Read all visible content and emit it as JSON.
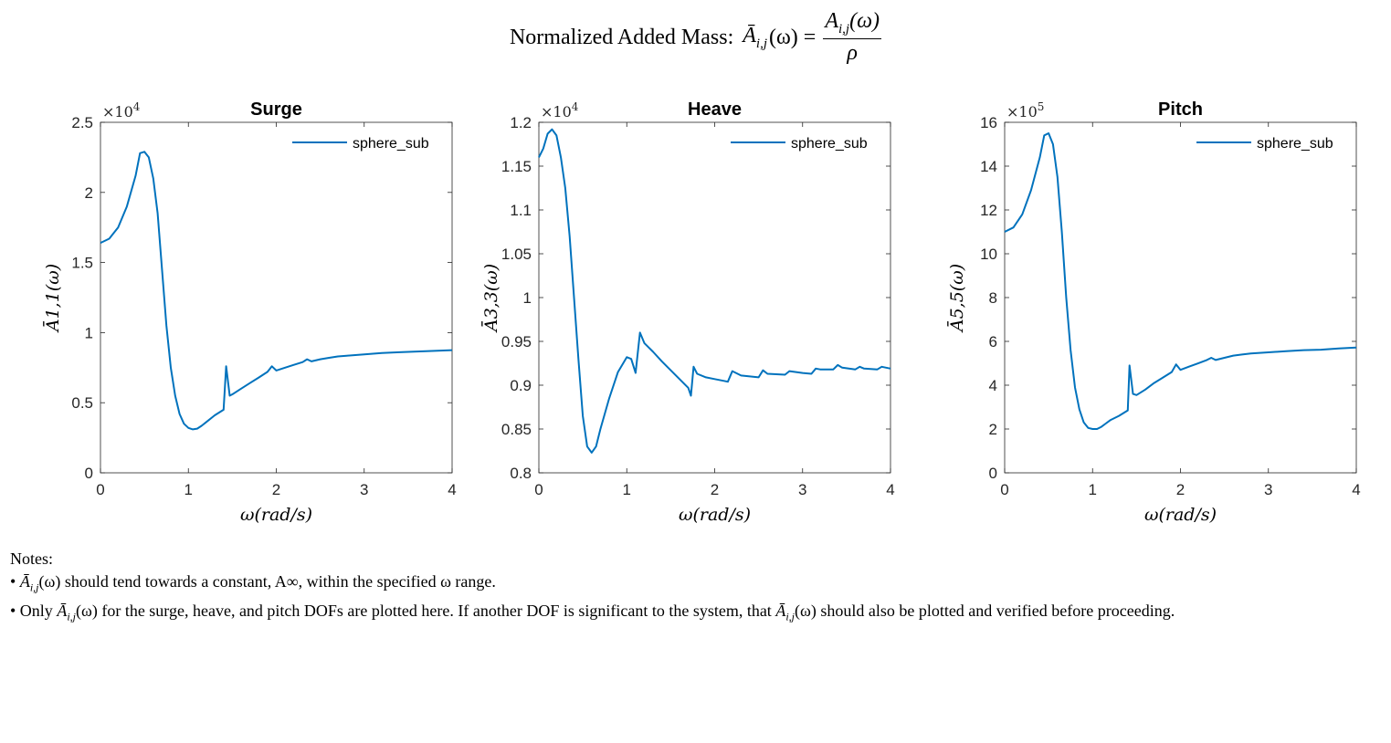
{
  "title": {
    "prefix": "Normalized Added Mass:",
    "lhs": "Ā",
    "lhs_sub": "i,j",
    "lhs_arg": "(ω) =",
    "numerator": "A",
    "numerator_sub": "i,j",
    "numerator_arg": "(ω)",
    "denominator": "ρ"
  },
  "colors": {
    "line": "#0072BD",
    "axis": "#262626",
    "text": "#000000"
  },
  "notes": {
    "header": "Notes:",
    "bullet1_prefix": "• ",
    "bullet1_sym": "Ā",
    "bullet1_sub": "i,j",
    "bullet1_arg": "(ω)",
    "bullet1_text": " should tend towards a constant, A∞, within the specified ω range.",
    "bullet2_prefix": "• Only ",
    "bullet2_sym": "Ā",
    "bullet2_sub": "i,j",
    "bullet2_arg": "(ω)",
    "bullet2_text_a": " for the surge, heave, and pitch DOFs are plotted here. If another DOF is significant to the system, that ",
    "bullet2_sym2": "Ā",
    "bullet2_sub2": "i,j",
    "bullet2_arg2": "(ω)",
    "bullet2_text_b": " should also be plotted and verified before proceeding."
  },
  "chart_data": [
    {
      "type": "line",
      "title": "Surge",
      "xlabel": "ω(rad/s)",
      "ylabel": "Ā1,1(ω)",
      "exponent": "×10",
      "exponent_power": "4",
      "scale": 10000,
      "xlim": [
        0,
        4
      ],
      "ylim": [
        0,
        2.5
      ],
      "xticks": [
        "0",
        "1",
        "2",
        "3",
        "4"
      ],
      "yticks": [
        "0",
        "0.5",
        "1",
        "1.5",
        "2",
        "2.5"
      ],
      "grid": false,
      "legend_position": "top-right",
      "series": [
        {
          "name": "sphere_sub",
          "x": [
            0,
            0.1,
            0.2,
            0.3,
            0.4,
            0.45,
            0.5,
            0.55,
            0.6,
            0.65,
            0.7,
            0.75,
            0.8,
            0.85,
            0.9,
            0.95,
            1.0,
            1.05,
            1.1,
            1.15,
            1.2,
            1.3,
            1.4,
            1.43,
            1.47,
            1.5,
            1.6,
            1.7,
            1.8,
            1.9,
            1.95,
            2.0,
            2.1,
            2.2,
            2.3,
            2.35,
            2.4,
            2.5,
            2.6,
            2.7,
            2.8,
            3.0,
            3.2,
            3.4,
            3.6,
            3.8,
            4.0
          ],
          "y": [
            1.64,
            1.67,
            1.75,
            1.9,
            2.12,
            2.28,
            2.29,
            2.25,
            2.1,
            1.85,
            1.45,
            1.05,
            0.75,
            0.55,
            0.42,
            0.35,
            0.32,
            0.31,
            0.315,
            0.335,
            0.36,
            0.41,
            0.45,
            0.76,
            0.55,
            0.56,
            0.6,
            0.64,
            0.68,
            0.72,
            0.76,
            0.73,
            0.75,
            0.77,
            0.79,
            0.81,
            0.795,
            0.81,
            0.82,
            0.83,
            0.835,
            0.845,
            0.855,
            0.86,
            0.865,
            0.87,
            0.875
          ]
        }
      ]
    },
    {
      "type": "line",
      "title": "Heave",
      "xlabel": "ω(rad/s)",
      "ylabel": "Ā3,3(ω)",
      "exponent": "×10",
      "exponent_power": "4",
      "scale": 10000,
      "xlim": [
        0,
        4
      ],
      "ylim": [
        0.8,
        1.2
      ],
      "xticks": [
        "0",
        "1",
        "2",
        "3",
        "4"
      ],
      "yticks": [
        "0.8",
        "0.85",
        "0.9",
        "0.95",
        "1",
        "1.05",
        "1.1",
        "1.15",
        "1.2"
      ],
      "grid": false,
      "legend_position": "top-right",
      "series": [
        {
          "name": "sphere_sub",
          "x": [
            0,
            0.05,
            0.1,
            0.15,
            0.2,
            0.25,
            0.3,
            0.35,
            0.4,
            0.45,
            0.5,
            0.55,
            0.6,
            0.65,
            0.7,
            0.8,
            0.9,
            1.0,
            1.05,
            1.1,
            1.15,
            1.2,
            1.3,
            1.4,
            1.5,
            1.6,
            1.7,
            1.73,
            1.76,
            1.8,
            1.9,
            2.0,
            2.1,
            2.15,
            2.2,
            2.3,
            2.4,
            2.5,
            2.55,
            2.6,
            2.8,
            2.85,
            3.0,
            3.1,
            3.15,
            3.2,
            3.35,
            3.4,
            3.45,
            3.6,
            3.65,
            3.7,
            3.85,
            3.9,
            4.0
          ],
          "y": [
            1.16,
            1.17,
            1.187,
            1.192,
            1.185,
            1.16,
            1.125,
            1.07,
            1.0,
            0.93,
            0.865,
            0.83,
            0.823,
            0.83,
            0.85,
            0.885,
            0.915,
            0.932,
            0.93,
            0.914,
            0.96,
            0.948,
            0.938,
            0.927,
            0.917,
            0.907,
            0.897,
            0.888,
            0.921,
            0.913,
            0.909,
            0.907,
            0.905,
            0.904,
            0.916,
            0.911,
            0.91,
            0.909,
            0.917,
            0.913,
            0.912,
            0.916,
            0.914,
            0.913,
            0.919,
            0.918,
            0.918,
            0.923,
            0.92,
            0.918,
            0.921,
            0.919,
            0.918,
            0.921,
            0.919
          ]
        }
      ]
    },
    {
      "type": "line",
      "title": "Pitch",
      "xlabel": "ω(rad/s)",
      "ylabel": "Ā5,5(ω)",
      "exponent": "×10",
      "exponent_power": "5",
      "scale": 100000,
      "xlim": [
        0,
        4
      ],
      "ylim": [
        0,
        16
      ],
      "xticks": [
        "0",
        "1",
        "2",
        "3",
        "4"
      ],
      "yticks": [
        "0",
        "2",
        "4",
        "6",
        "8",
        "10",
        "12",
        "14",
        "16"
      ],
      "grid": false,
      "legend_position": "top-right",
      "series": [
        {
          "name": "sphere_sub",
          "x": [
            0,
            0.1,
            0.2,
            0.3,
            0.4,
            0.45,
            0.5,
            0.55,
            0.6,
            0.65,
            0.7,
            0.75,
            0.8,
            0.85,
            0.9,
            0.95,
            1.0,
            1.05,
            1.1,
            1.15,
            1.2,
            1.3,
            1.4,
            1.42,
            1.46,
            1.5,
            1.6,
            1.7,
            1.8,
            1.9,
            1.95,
            2.0,
            2.1,
            2.2,
            2.3,
            2.35,
            2.4,
            2.5,
            2.6,
            2.7,
            2.8,
            3.0,
            3.2,
            3.4,
            3.6,
            3.8,
            4.0
          ],
          "y": [
            11.0,
            11.2,
            11.8,
            12.9,
            14.4,
            15.4,
            15.5,
            15.0,
            13.5,
            11.0,
            8.0,
            5.6,
            3.9,
            2.9,
            2.3,
            2.05,
            2.0,
            2.0,
            2.1,
            2.25,
            2.4,
            2.6,
            2.85,
            4.9,
            3.6,
            3.55,
            3.8,
            4.1,
            4.35,
            4.6,
            4.95,
            4.7,
            4.85,
            5.0,
            5.15,
            5.25,
            5.15,
            5.25,
            5.35,
            5.4,
            5.45,
            5.5,
            5.55,
            5.6,
            5.62,
            5.68,
            5.72
          ]
        }
      ]
    }
  ]
}
